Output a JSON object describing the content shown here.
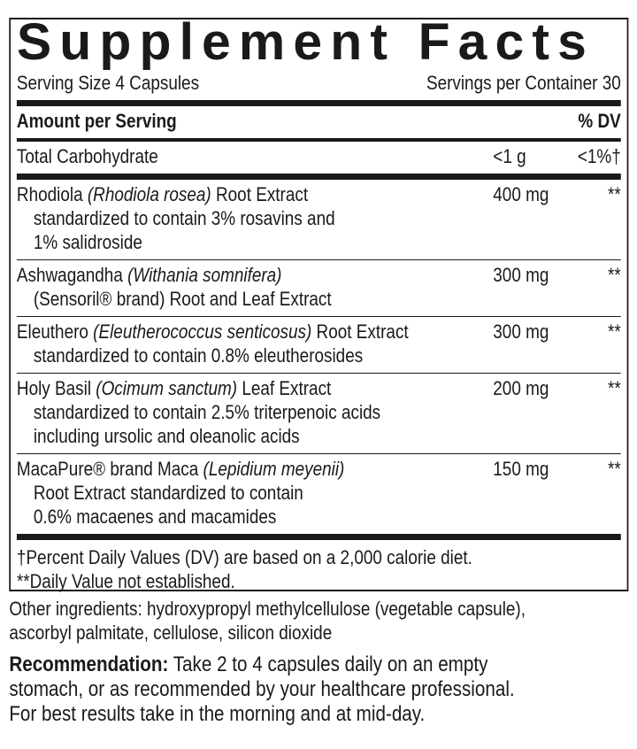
{
  "title": "Supplement Facts",
  "serving_size": "Serving Size 4 Capsules",
  "servings_per_container": "Servings per Container 30",
  "header": {
    "amount": "Amount per Serving",
    "dv": "% DV"
  },
  "carb": {
    "name": "Total Carbohydrate",
    "amount": "<1 g",
    "dv": "<1%†"
  },
  "ingredients": [
    {
      "name": "Rhodiola ",
      "latin": "(Rhodiola rosea)",
      "rest": " Root Extract",
      "lines": [
        "standardized to contain 3% rosavins and",
        "1% salidroside"
      ],
      "amount": "400 mg",
      "dv": "**"
    },
    {
      "name": "Ashwagandha ",
      "latin": "(Withania somnifera)",
      "rest": "",
      "lines": [
        "(Sensoril® brand) Root and Leaf Extract"
      ],
      "amount": "300 mg",
      "dv": "**"
    },
    {
      "name": "Eleuthero ",
      "latin": "(Eleutherococcus senticosus)",
      "rest": " Root Extract",
      "lines": [
        "standardized to contain 0.8% eleutherosides"
      ],
      "amount": "300 mg",
      "dv": "**"
    },
    {
      "name": "Holy Basil ",
      "latin": "(Ocimum sanctum)",
      "rest": " Leaf Extract",
      "lines": [
        "standardized to contain 2.5% triterpenoic acids",
        "including ursolic and oleanolic acids"
      ],
      "amount": "200 mg",
      "dv": "**"
    },
    {
      "name": "MacaPure® brand Maca ",
      "latin": "(Lepidium meyenii)",
      "rest": "",
      "lines": [
        "Root Extract standardized to contain",
        "0.6% macaenes and macamides"
      ],
      "amount": "150 mg",
      "dv": "**"
    }
  ],
  "footnotes": [
    "†Percent Daily Values (DV) are based on a 2,000 calorie diet.",
    "**Daily Value not established."
  ],
  "other_ingredients": [
    "Other ingredients: hydroxypropyl methylcellulose (vegetable capsule),",
    "ascorbyl palmitate, cellulose, silicon dioxide"
  ],
  "recommendation": {
    "label": "Recommendation:",
    "text": " Take 2 to 4 capsules daily on an empty",
    "lines": [
      "stomach, or as recommended by your healthcare professional.",
      "For best results take in the morning and at mid-day."
    ]
  }
}
